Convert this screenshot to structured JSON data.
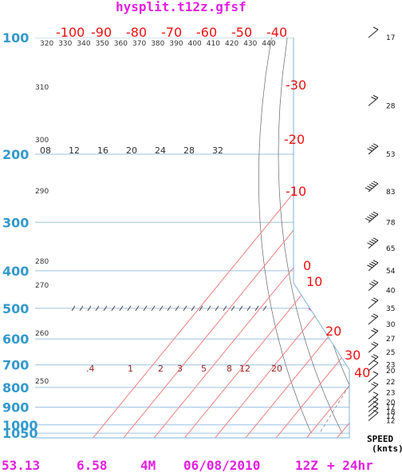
{
  "title": "hysplit.t12z.gfsf",
  "footer": {
    "lat": "53.13",
    "lon": "6.58",
    "station": "4M",
    "date": "06/08/2010",
    "hour": "12Z",
    "forecast": "+ 24hr"
  },
  "speed_header": [
    "SPEED",
    "(knts)"
  ],
  "colors": {
    "title": "#e020e0",
    "pressure_labels": "#3399cc",
    "temperature_lines": "#ee1111",
    "temperature_profile": "#dd1111",
    "dewpoint_profile": "#119911",
    "parcel_path": "#ffee00",
    "mixing_path": "#ff22bb",
    "low_path": "#000088"
  },
  "chart_data": {
    "type": "skew-t",
    "pressure_levels": [
      100,
      200,
      300,
      400,
      500,
      600,
      700,
      800,
      900,
      1000,
      1050
    ],
    "pressure_labels": [
      "100",
      "200",
      "300",
      "400",
      "500",
      "600",
      "700",
      "800",
      "900",
      "1000",
      "1050"
    ],
    "temperature_isotherms": [
      -100,
      -90,
      -80,
      -70,
      -60,
      -50,
      -40,
      -30,
      -20,
      -10,
      0,
      10,
      20,
      30,
      40
    ],
    "temperature_labels": [
      "-100",
      "-90",
      "-80",
      "-70",
      "-60",
      "-50",
      "-40",
      "-30",
      "-20",
      "-10",
      "0",
      "10",
      "20",
      "30",
      "40"
    ],
    "theta_labels": [
      "320",
      "330",
      "340",
      "350",
      "360",
      "370",
      "380",
      "390",
      "400",
      "410",
      "420",
      "430",
      "440",
      "310",
      "300",
      "290",
      "280",
      "270",
      "260",
      "250"
    ],
    "mixing_ratio_labels_top": [
      "08",
      "12",
      "16",
      "20",
      "24",
      "28",
      "32"
    ],
    "mixing_ratio_labels_low": [
      ".4",
      "1",
      "2",
      "3",
      "5",
      "8",
      "12",
      "20"
    ],
    "temperature_profile": [
      {
        "p": 100,
        "t": -44
      },
      {
        "p": 150,
        "t": -53
      },
      {
        "p": 180,
        "t": -58
      },
      {
        "p": 200,
        "t": -60
      },
      {
        "p": 250,
        "t": -64
      },
      {
        "p": 300,
        "t": -48
      },
      {
        "p": 400,
        "t": -33
      },
      {
        "p": 500,
        "t": -22
      },
      {
        "p": 600,
        "t": -13
      },
      {
        "p": 700,
        "t": -5
      },
      {
        "p": 800,
        "t": 3
      },
      {
        "p": 900,
        "t": 10
      },
      {
        "p": 1000,
        "t": 15
      }
    ],
    "dewpoint_profile": [
      {
        "p": 200,
        "t": -68
      },
      {
        "p": 250,
        "t": -67
      },
      {
        "p": 300,
        "t": -60
      },
      {
        "p": 400,
        "t": -44
      },
      {
        "p": 450,
        "t": -42
      },
      {
        "p": 500,
        "t": -36
      },
      {
        "p": 600,
        "t": -26
      },
      {
        "p": 700,
        "t": -17
      },
      {
        "p": 800,
        "t": -8
      },
      {
        "p": 900,
        "t": 4
      },
      {
        "p": 1000,
        "t": 6
      }
    ],
    "parcel_path": [
      {
        "p": 200,
        "t": -79
      },
      {
        "p": 300,
        "t": -55
      },
      {
        "p": 400,
        "t": -37
      },
      {
        "p": 500,
        "t": -25
      },
      {
        "p": 600,
        "t": -13
      },
      {
        "p": 700,
        "t": -3
      },
      {
        "p": 800,
        "t": 5
      },
      {
        "p": 900,
        "t": 10
      }
    ],
    "mixing_path": [
      {
        "p": 500,
        "t": -64
      },
      {
        "p": 600,
        "t": -43
      },
      {
        "p": 700,
        "t": -26
      },
      {
        "p": 800,
        "t": -9
      },
      {
        "p": 900,
        "t": 5
      },
      {
        "p": 1000,
        "t": 17
      }
    ],
    "low_path": [
      {
        "p": 700,
        "t": 17
      },
      {
        "p": 800,
        "t": 14
      },
      {
        "p": 900,
        "t": 10
      },
      {
        "p": 1000,
        "t": 9
      }
    ],
    "winds": [
      {
        "p": 100,
        "speed": 17,
        "label": "17"
      },
      {
        "p": 150,
        "speed": 28,
        "label": "28"
      },
      {
        "p": 200,
        "speed": 53,
        "label": "53"
      },
      {
        "p": 250,
        "speed": 83,
        "label": "83"
      },
      {
        "p": 300,
        "speed": 78,
        "label": "78"
      },
      {
        "p": 350,
        "speed": 65,
        "label": "65"
      },
      {
        "p": 400,
        "speed": 54,
        "label": "54"
      },
      {
        "p": 450,
        "speed": 40,
        "label": "40"
      },
      {
        "p": 500,
        "speed": 35,
        "label": "35"
      },
      {
        "p": 550,
        "speed": 30,
        "label": "30"
      },
      {
        "p": 600,
        "speed": 27,
        "label": "27"
      },
      {
        "p": 650,
        "speed": 25,
        "label": "25"
      },
      {
        "p": 700,
        "speed": 23,
        "label": "23"
      },
      {
        "p": 725,
        "speed": 20,
        "label": "20"
      },
      {
        "p": 775,
        "speed": 22,
        "label": "22"
      },
      {
        "p": 825,
        "speed": 23,
        "label": "23"
      },
      {
        "p": 875,
        "speed": 20,
        "label": "20"
      },
      {
        "p": 900,
        "speed": 17,
        "label": "17"
      },
      {
        "p": 925,
        "speed": 18,
        "label": "18"
      },
      {
        "p": 950,
        "speed": 17,
        "label": "17"
      },
      {
        "p": 975,
        "speed": 12,
        "label": "12"
      }
    ]
  }
}
